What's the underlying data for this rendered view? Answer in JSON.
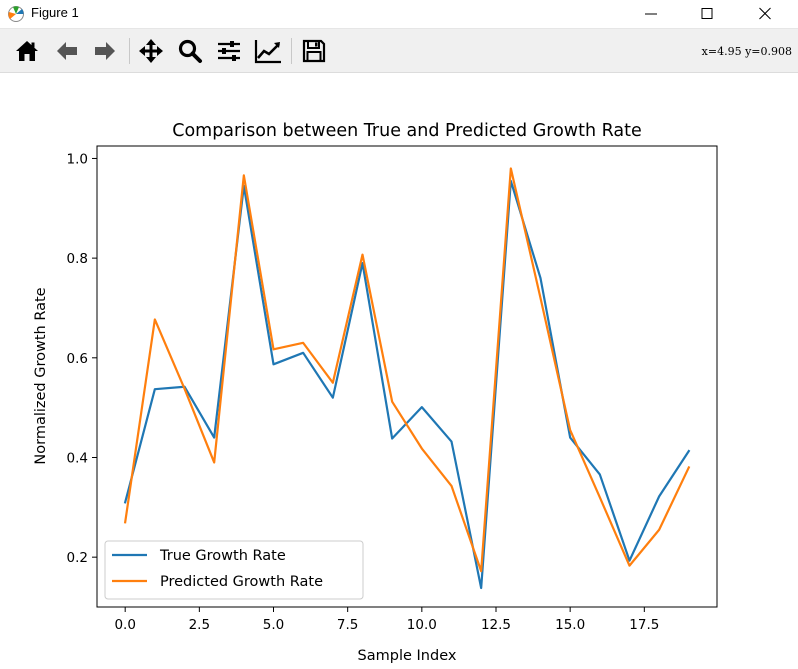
{
  "window": {
    "title": "Figure 1"
  },
  "toolbar": {
    "tools": [
      {
        "name": "home-icon"
      },
      {
        "name": "back-arrow-icon"
      },
      {
        "name": "forward-arrow-icon"
      },
      {
        "name": "pan-icon"
      },
      {
        "name": "zoom-icon"
      },
      {
        "name": "configure-subplots-icon"
      },
      {
        "name": "edit-axes-icon"
      },
      {
        "name": "save-icon"
      }
    ],
    "coordinates": "x=4.95  y=0.908"
  },
  "chart_data": {
    "type": "line",
    "title": "Comparison between True and Predicted Growth Rate",
    "xlabel": "Sample Index",
    "ylabel": "Normalized Growth Rate",
    "xlim": [
      -0.95,
      19.95
    ],
    "ylim": [
      0.1,
      1.025
    ],
    "xticks": [
      0.0,
      2.5,
      5.0,
      7.5,
      10.0,
      12.5,
      15.0,
      17.5
    ],
    "xtick_labels": [
      "0.0",
      "2.5",
      "5.0",
      "7.5",
      "10.0",
      "12.5",
      "15.0",
      "17.5"
    ],
    "yticks": [
      0.2,
      0.4,
      0.6,
      0.8,
      1.0
    ],
    "ytick_labels": [
      "0.2",
      "0.4",
      "0.6",
      "0.8",
      "1.0"
    ],
    "grid": false,
    "legend_position": "lower-left",
    "x": [
      0,
      1,
      2,
      3,
      4,
      5,
      6,
      7,
      8,
      9,
      10,
      11,
      12,
      13,
      14,
      15,
      16,
      17,
      18,
      19
    ],
    "series": [
      {
        "name": "True Growth Rate",
        "color": "#1f77b4",
        "values": [
          0.31,
          0.537,
          0.542,
          0.44,
          0.945,
          0.587,
          0.61,
          0.52,
          0.79,
          0.438,
          0.501,
          0.432,
          0.138,
          0.955,
          0.76,
          0.44,
          0.366,
          0.193,
          0.322,
          0.413
        ]
      },
      {
        "name": "Predicted Growth Rate",
        "color": "#ff7f0e",
        "values": [
          0.27,
          0.677,
          0.538,
          0.39,
          0.966,
          0.617,
          0.63,
          0.55,
          0.807,
          0.512,
          0.418,
          0.343,
          0.172,
          0.98,
          0.72,
          0.455,
          0.32,
          0.183,
          0.255,
          0.38
        ]
      }
    ]
  }
}
